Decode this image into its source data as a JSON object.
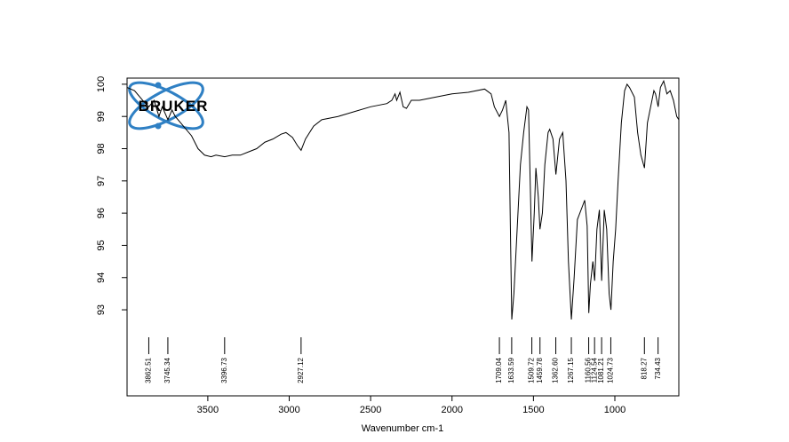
{
  "logo": {
    "text": "BRUKER"
  },
  "chart_data": {
    "type": "line",
    "xlabel": "Wavenumber cm-1",
    "xlim": [
      3996,
      607
    ],
    "ylim": [
      90.33,
      100.19
    ],
    "xticks": [
      3500,
      3000,
      2500,
      2000,
      1500,
      1000
    ],
    "yticks": [
      93,
      94,
      95,
      96,
      97,
      98,
      99,
      100
    ],
    "color": "#000000",
    "x": [
      3996,
      3950,
      3900,
      3862,
      3830,
      3800,
      3780,
      3745,
      3720,
      3700,
      3650,
      3600,
      3560,
      3520,
      3480,
      3450,
      3396,
      3350,
      3300,
      3250,
      3200,
      3150,
      3100,
      3050,
      3020,
      2980,
      2950,
      2927,
      2900,
      2850,
      2800,
      2700,
      2600,
      2500,
      2400,
      2370,
      2350,
      2340,
      2320,
      2300,
      2280,
      2250,
      2200,
      2100,
      2000,
      1900,
      1800,
      1760,
      1740,
      1709,
      1690,
      1670,
      1650,
      1640,
      1633,
      1620,
      1600,
      1580,
      1560,
      1540,
      1530,
      1520,
      1509,
      1495,
      1485,
      1470,
      1460,
      1445,
      1430,
      1410,
      1400,
      1380,
      1362,
      1340,
      1320,
      1300,
      1285,
      1267,
      1250,
      1230,
      1200,
      1185,
      1170,
      1160,
      1150,
      1135,
      1124,
      1110,
      1095,
      1081,
      1065,
      1050,
      1035,
      1024,
      1010,
      995,
      980,
      960,
      940,
      925,
      910,
      880,
      860,
      840,
      818,
      800,
      780,
      760,
      750,
      734,
      720,
      710,
      700,
      690,
      680,
      660,
      640,
      620,
      607
    ],
    "values": [
      99.9,
      99.8,
      99.5,
      99.3,
      99.5,
      99.0,
      99.3,
      98.9,
      99.2,
      99.0,
      98.7,
      98.4,
      98.0,
      97.8,
      97.75,
      97.8,
      97.75,
      97.8,
      97.8,
      97.9,
      98.0,
      98.2,
      98.3,
      98.45,
      98.5,
      98.35,
      98.1,
      97.95,
      98.3,
      98.7,
      98.9,
      99.0,
      99.15,
      99.3,
      99.4,
      99.5,
      99.7,
      99.5,
      99.75,
      99.3,
      99.25,
      99.5,
      99.5,
      99.6,
      99.7,
      99.75,
      99.85,
      99.7,
      99.3,
      99.0,
      99.2,
      99.5,
      98.5,
      95,
      92.7,
      93.5,
      95.5,
      97.5,
      98.5,
      99.3,
      99.2,
      97,
      94.5,
      96,
      97.4,
      96.5,
      95.5,
      96,
      97.5,
      98.5,
      98.6,
      98.3,
      97.2,
      98.3,
      98.5,
      97,
      94.5,
      92.7,
      94,
      95.8,
      96.2,
      96.4,
      95.6,
      92.9,
      93.8,
      94.5,
      93.9,
      95.5,
      96.1,
      93.9,
      96.1,
      95.5,
      93.5,
      93,
      94.5,
      95.5,
      97,
      98.8,
      99.8,
      100,
      99.9,
      99.6,
      98.5,
      97.8,
      97.4,
      98.8,
      99.3,
      99.8,
      99.7,
      99.3,
      99.9,
      100.0,
      100.1,
      99.9,
      99.7,
      99.8,
      99.5,
      99,
      98.9
    ],
    "peaks": [
      3862.51,
      3745.34,
      3396.73,
      2927.12,
      1709.04,
      1633.59,
      1509.72,
      1459.78,
      {
        "value": 1362.6,
        "label": "1362.60"
      },
      1267.15,
      1160.56,
      1124.54,
      1081.21,
      1024.73,
      818.27,
      734.43
    ]
  }
}
